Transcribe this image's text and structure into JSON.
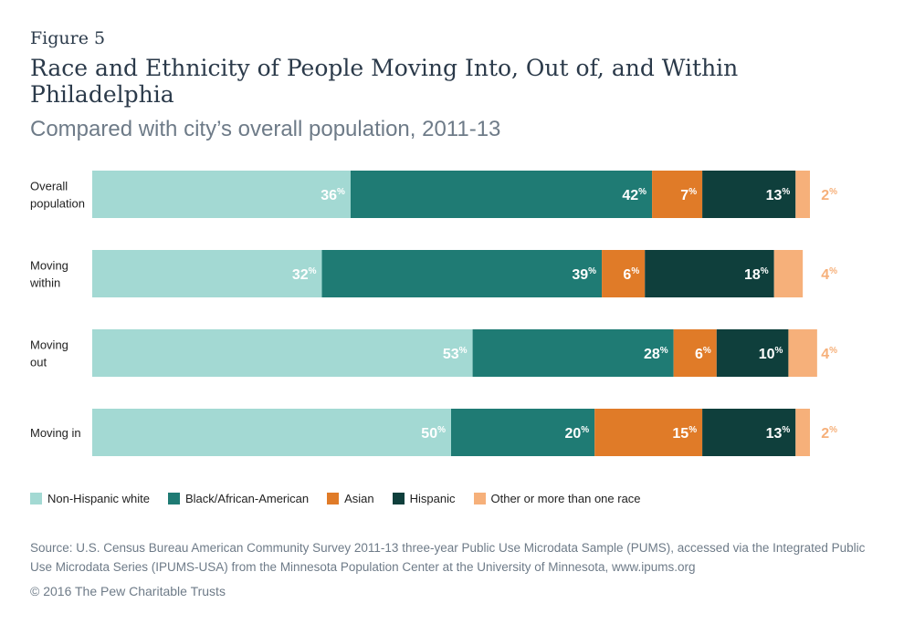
{
  "figure_label": "Figure 5",
  "title": "Race and Ethnicity of People Moving Into, Out of, and Within Philadelphia",
  "subtitle": "Compared with city’s overall population, 2011-13",
  "source": "Source: U.S. Census Bureau American Community Survey 2011-13 three-year Public Use Microdata Sample (PUMS), accessed via the Integrated Public Use Microdata Series (IPUMS-USA) from the Minnesota Population Center at the University of Minnesota, www.ipums.org",
  "copyright": "© 2016 The Pew Charitable Trusts",
  "chart_data": {
    "type": "bar",
    "orientation": "horizontal",
    "stacked": true,
    "xlim": [
      0,
      100
    ],
    "grid": false,
    "legend_position": "bottom",
    "categories": [
      [
        "Overall",
        "population"
      ],
      [
        "Moving",
        "within"
      ],
      [
        "Moving",
        "out"
      ],
      [
        "Moving in"
      ]
    ],
    "series": [
      {
        "name": "Non-Hispanic white",
        "color": "#a3d9d3",
        "label_color": "#ffffff",
        "values": [
          36,
          32,
          53,
          50
        ]
      },
      {
        "name": "Black/African-American",
        "color": "#1f7b74",
        "label_color": "#ffffff",
        "values": [
          42,
          39,
          28,
          20
        ]
      },
      {
        "name": "Asian",
        "color": "#e07b28",
        "label_color": "#ffffff",
        "values": [
          7,
          6,
          6,
          15
        ]
      },
      {
        "name": "Hispanic",
        "color": "#0f3f3c",
        "label_color": "#ffffff",
        "values": [
          13,
          18,
          10,
          13
        ]
      },
      {
        "name": "Other or more than one race",
        "color": "#f6b07a",
        "label_color": "#f6b07a",
        "values": [
          2,
          4,
          4,
          2
        ]
      }
    ],
    "value_suffix": "%"
  }
}
